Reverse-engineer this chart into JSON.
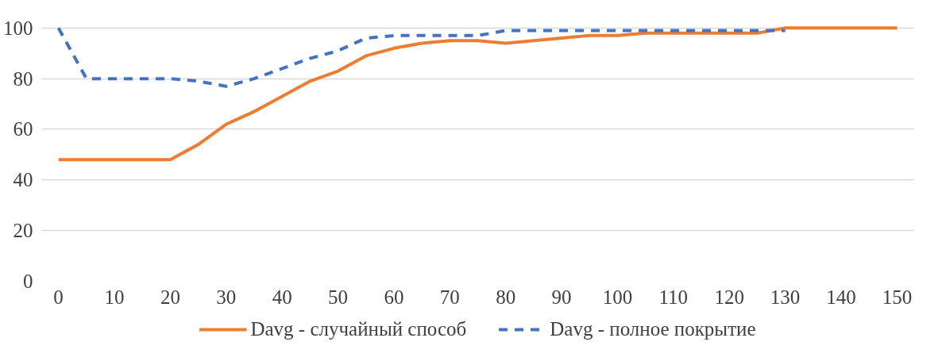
{
  "chart_data": {
    "type": "line",
    "x": [
      0,
      5,
      10,
      15,
      20,
      25,
      30,
      35,
      40,
      45,
      50,
      55,
      60,
      65,
      70,
      75,
      80,
      85,
      90,
      95,
      100,
      105,
      110,
      115,
      120,
      125,
      130,
      135,
      140,
      145,
      150
    ],
    "series": [
      {
        "name": "Davg - случайный способ",
        "color": "#ed7d31",
        "line_style": "solid",
        "values": [
          48,
          48,
          48,
          48,
          48,
          54,
          62,
          67,
          73,
          79,
          83,
          89,
          92,
          94,
          95,
          95,
          94,
          95,
          96,
          97,
          97,
          98,
          98,
          98,
          98,
          98,
          100,
          100,
          100,
          100,
          100
        ]
      },
      {
        "name": "Davg - полное покрытие",
        "color": "#4472c4",
        "line_style": "dashed",
        "values": [
          100,
          80,
          80,
          80,
          80,
          79,
          77,
          80,
          84,
          88,
          91,
          96,
          97,
          97,
          97,
          97,
          99,
          99,
          99,
          99,
          99,
          99,
          99,
          99,
          99,
          99,
          99,
          null,
          null,
          null,
          null
        ]
      }
    ],
    "xlim": [
      -3,
      153
    ],
    "xticks": [
      0,
      10,
      20,
      30,
      40,
      50,
      60,
      70,
      80,
      90,
      100,
      110,
      120,
      130,
      140,
      150
    ],
    "ylim": [
      0,
      100
    ],
    "yticks": [
      0,
      20,
      40,
      60,
      80,
      100
    ],
    "grid": "y",
    "legend": "bottom",
    "marker": "none"
  }
}
